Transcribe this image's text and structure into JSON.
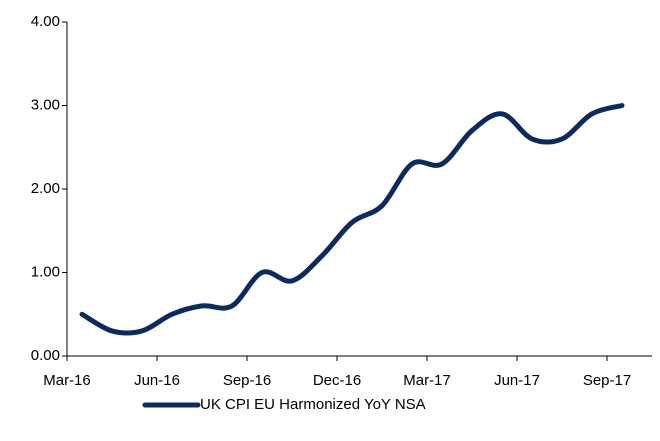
{
  "chart_data": {
    "type": "line",
    "categories": [
      "Mar-16",
      null,
      null,
      "Jun-16",
      null,
      null,
      "Sep-16",
      null,
      null,
      "Dec-16",
      null,
      null,
      "Mar-17",
      null,
      null,
      "Jun-17",
      null,
      null,
      "Sep-17"
    ],
    "series": [
      {
        "name": "UK CPI EU Harmonized YoY NSA",
        "color": "#0d2a5c",
        "values": [
          0.5,
          0.3,
          0.3,
          0.5,
          0.6,
          0.6,
          1.0,
          0.9,
          1.2,
          1.6,
          1.8,
          2.3,
          2.3,
          2.7,
          2.9,
          2.6,
          2.6,
          2.9,
          3.0
        ]
      }
    ],
    "ylim": [
      0,
      4
    ],
    "yticks": [
      {
        "value": 0,
        "label": "0.00"
      },
      {
        "value": 1,
        "label": "1.00"
      },
      {
        "value": 2,
        "label": "2.00"
      },
      {
        "value": 3,
        "label": "3.00"
      },
      {
        "value": 4,
        "label": "4.00"
      }
    ],
    "legend": "bottom"
  }
}
